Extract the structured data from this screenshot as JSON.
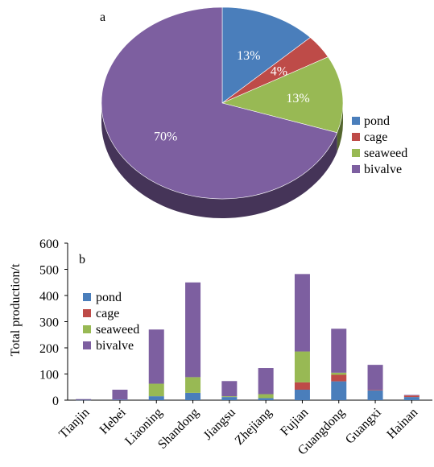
{
  "colors": {
    "pond": "#4a7ebb",
    "cage": "#be4b48",
    "seaweed": "#98b954",
    "bivalve": "#7d5fa0"
  },
  "chart_data": [
    {
      "type": "pie",
      "panel_label": "a",
      "slices": [
        {
          "name": "pond",
          "value": 13,
          "label": "13%"
        },
        {
          "name": "cage",
          "value": 4,
          "label": "4%"
        },
        {
          "name": "seaweed",
          "value": 13,
          "label": "13%"
        },
        {
          "name": "bivalve",
          "value": 70,
          "label": "70%"
        }
      ],
      "legend": [
        "pond",
        "cage",
        "seaweed",
        "bivalve"
      ],
      "legend_position": "right"
    },
    {
      "type": "bar",
      "stacked": true,
      "panel_label": "b",
      "ylabel": "Total production/t",
      "ylim": [
        0,
        600
      ],
      "yticks": [
        0,
        100,
        200,
        300,
        400,
        500,
        600
      ],
      "categories": [
        "Tianjin",
        "Hebei",
        "Liaoning",
        "Shandong",
        "Jiangsu",
        "Zhejiang",
        "Fujian",
        "Guangdong",
        "Guangxi",
        "Hainan"
      ],
      "series": [
        {
          "name": "pond",
          "values": [
            1,
            2,
            15,
            28,
            12,
            8,
            40,
            72,
            37,
            12
          ]
        },
        {
          "name": "cage",
          "values": [
            0,
            0,
            0,
            0,
            0,
            0,
            28,
            25,
            2,
            6
          ]
        },
        {
          "name": "seaweed",
          "values": [
            0,
            0,
            48,
            60,
            3,
            15,
            118,
            8,
            0,
            0
          ]
        },
        {
          "name": "bivalve",
          "values": [
            3,
            38,
            207,
            362,
            58,
            100,
            296,
            168,
            96,
            2
          ]
        }
      ],
      "legend": [
        "pond",
        "cage",
        "seaweed",
        "bivalve"
      ],
      "legend_position": "top-left",
      "grid": false
    }
  ]
}
